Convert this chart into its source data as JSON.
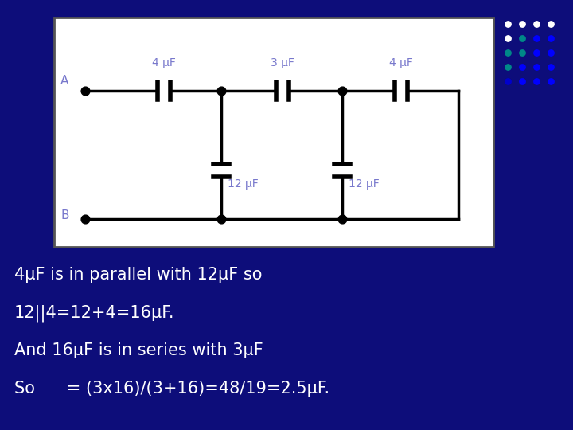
{
  "bg_color": "#0d0d7a",
  "circuit_bg": "#ffffff",
  "label_color": "#7878cc",
  "wire_color": "#000000",
  "text_color": "#ffffff",
  "title_lines": [
    "4μF is in parallel with 12μF so",
    "12||4=12+4=16μF.",
    "And 16μF is in series with 3μF",
    "So      = (3x16)/(3+16)=48/19=2.5μF."
  ],
  "text_fontsize": 15,
  "dot_colors": [
    [
      "#ffffff",
      "#ffffff",
      "#ffffff",
      "#ffffff"
    ],
    [
      "#ffffff",
      "#008888",
      "#0000ff",
      "#0000ff"
    ],
    [
      "#008888",
      "#008888",
      "#0000ff",
      "#0000ff"
    ],
    [
      "#008888",
      "#0000ff",
      "#0000ff",
      "#0000ff"
    ],
    [
      "#0000cc",
      "#0000ff",
      "#0000ff",
      "#0000ff"
    ]
  ]
}
